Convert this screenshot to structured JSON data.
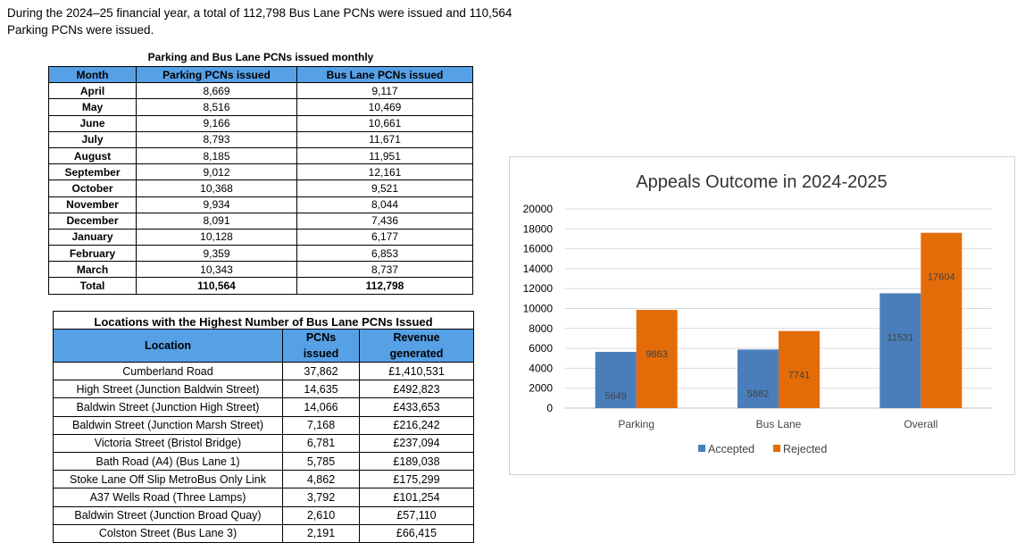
{
  "intro": "During the 2024–25 financial year, a total of 112,798 Bus Lane PCNs were issued and 110,564 Parking PCNs were issued.",
  "monthly_table": {
    "caption": "Parking and Bus Lane PCNs issued monthly",
    "headers": [
      "Month",
      "Parking PCNs issued",
      "Bus Lane PCNs issued"
    ],
    "rows": [
      [
        "April",
        "8,669",
        "9,117"
      ],
      [
        "May",
        "8,516",
        "10,469"
      ],
      [
        "June",
        "9,166",
        "10,661"
      ],
      [
        "July",
        "8,793",
        "11,671"
      ],
      [
        "August",
        "8,185",
        "11,951"
      ],
      [
        "September",
        "9,012",
        "12,161"
      ],
      [
        "October",
        "10,368",
        "9,521"
      ],
      [
        "November",
        "9,934",
        "8,044"
      ],
      [
        "December",
        "8,091",
        "7,436"
      ],
      [
        "January",
        "10,128",
        "6,177"
      ],
      [
        "February",
        "9,359",
        "6,853"
      ],
      [
        "March",
        "10,343",
        "8,737"
      ]
    ],
    "total": [
      "Total",
      "110,564",
      "112,798"
    ]
  },
  "locations_table": {
    "caption": "Locations with the Highest Number of Bus Lane PCNs Issued",
    "headers": {
      "location": "Location",
      "pcns_line1": "PCNs",
      "pcns_line2": "issued",
      "revenue_line1": "Revenue",
      "revenue_line2": "generated"
    },
    "rows": [
      [
        "Cumberland Road",
        "37,862",
        "£1,410,531"
      ],
      [
        "High Street (Junction Baldwin Street)",
        "14,635",
        "£492,823"
      ],
      [
        "Baldwin Street (Junction High Street)",
        "14,066",
        "£433,653"
      ],
      [
        "Baldwin Street (Junction Marsh Street)",
        "7,168",
        "£216,242"
      ],
      [
        "Victoria Street (Bristol Bridge)",
        "6,781",
        "£237,094"
      ],
      [
        "Bath Road (A4) (Bus Lane 1)",
        "5,785",
        "£189,038"
      ],
      [
        "Stoke Lane Off Slip MetroBus Only Link",
        "4,862",
        "£175,299"
      ],
      [
        "A37 Wells Road (Three Lamps)",
        "3,792",
        "£101,254"
      ],
      [
        "Baldwin Street (Junction Broad Quay)",
        "2,610",
        "£57,110"
      ],
      [
        "Colston Street (Bus Lane 3)",
        "2,191",
        "£66,415"
      ]
    ]
  },
  "chart_data": {
    "type": "bar",
    "title": "Appeals Outcome in 2024-2025",
    "categories": [
      "Parking",
      "Bus Lane",
      "Overall"
    ],
    "series": [
      {
        "name": "Accepted",
        "values": [
          5649,
          5882,
          11531
        ],
        "color": "#4a7ebb"
      },
      {
        "name": "Rejected",
        "values": [
          9863,
          7741,
          17604
        ],
        "color": "#e36c09"
      }
    ],
    "y_ticks": [
      0,
      2000,
      4000,
      6000,
      8000,
      10000,
      12000,
      14000,
      16000,
      18000,
      20000
    ],
    "ylim": [
      0,
      20000
    ],
    "grid": true,
    "legend": "bottom",
    "xlabel": "",
    "ylabel": ""
  }
}
